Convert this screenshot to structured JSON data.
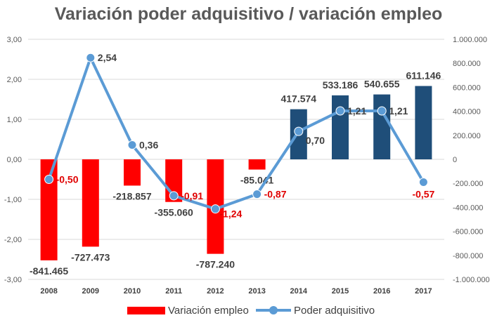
{
  "chart_data": {
    "type": "bar+line",
    "title": "Variación poder adquisitivo / variación empleo",
    "categories": [
      "2008",
      "2009",
      "2010",
      "2011",
      "2012",
      "2013",
      "2014",
      "2015",
      "2016",
      "2017"
    ],
    "series": [
      {
        "name": "Variación empleo",
        "type": "bar",
        "axis": "right",
        "values": [
          -841465,
          -727473,
          -218857,
          -355060,
          -787240,
          -85041,
          417574,
          533186,
          540655,
          611146
        ],
        "labels": [
          "-841.465",
          "-727.473",
          "-218.857",
          "-355.060",
          "-787.240",
          "-85.041",
          "417.574",
          "533.186",
          "540.655",
          "611.146"
        ],
        "color_negative": "#ff0000",
        "color_positive": "#1f4e79"
      },
      {
        "name": "Poder adquisitivo",
        "type": "line",
        "axis": "left",
        "values": [
          -0.5,
          2.54,
          0.36,
          -0.91,
          -1.24,
          -0.87,
          0.7,
          1.21,
          1.21,
          -0.57
        ],
        "labels": [
          "-0,50",
          "2,54",
          "0,36",
          "-0,91",
          "-1,24",
          "-0,87",
          "0,70",
          "1,21",
          "1,21",
          "-0,57"
        ],
        "color": "#5b9bd5"
      }
    ],
    "y_left": {
      "min": -3,
      "max": 3,
      "ticks": [
        "3,00",
        "2,00",
        "1,00",
        "0,00",
        "-1,00",
        "-2,00",
        "-3,00"
      ]
    },
    "y_right": {
      "min": -1000000,
      "max": 1000000,
      "ticks": [
        "1.000.000",
        "800.000",
        "600.000",
        "400.000",
        "200.000",
        "0",
        "-200.000",
        "-400.000",
        "-600.000",
        "-800.000",
        "-1.000.000"
      ]
    },
    "legend": {
      "position": "bottom",
      "items": [
        "Variación empleo",
        "Poder adquisitivo"
      ]
    },
    "colors": {
      "label_negative": "#e00000",
      "label_positive": "#404040",
      "axis_text": "#595959"
    }
  }
}
